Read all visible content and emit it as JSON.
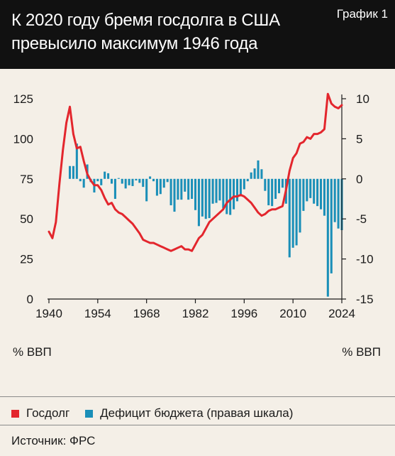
{
  "header": {
    "title": "К 2020 году бремя госдолга в США превысило максимум 1946 года",
    "tag": "График 1"
  },
  "units": {
    "left": "% ВВП",
    "right": "% ВВП"
  },
  "legend": [
    {
      "label": "Госдолг",
      "color": "#e3262d"
    },
    {
      "label": "Дефицит бюджета (правая шкала)",
      "color": "#1a8fb8"
    }
  ],
  "source": "Источник: ФРС",
  "colors": {
    "debt": "#e3262d",
    "deficit": "#1a8fb8",
    "header_bg": "#111111",
    "background": "#f4efe7"
  },
  "chart_data": {
    "type": "line+bar",
    "x_ticks": [
      1940,
      1954,
      1968,
      1982,
      1996,
      2010,
      2024
    ],
    "xlim": [
      1940,
      2024
    ],
    "left_axis": {
      "ticks": [
        0,
        25,
        50,
        75,
        100,
        125
      ],
      "ylim": [
        0,
        125
      ]
    },
    "right_axis": {
      "ticks": [
        -15,
        -10,
        -5,
        0,
        5,
        10
      ],
      "ylim": [
        -15,
        10
      ]
    },
    "series": [
      {
        "name": "Госдолг",
        "type": "line",
        "axis": "left",
        "x": [
          1940,
          1941,
          1942,
          1943,
          1944,
          1945,
          1946,
          1947,
          1948,
          1949,
          1950,
          1951,
          1952,
          1953,
          1954,
          1955,
          1956,
          1957,
          1958,
          1959,
          1960,
          1961,
          1962,
          1963,
          1964,
          1965,
          1966,
          1967,
          1968,
          1969,
          1970,
          1971,
          1972,
          1973,
          1974,
          1975,
          1976,
          1977,
          1978,
          1979,
          1980,
          1981,
          1982,
          1983,
          1984,
          1985,
          1986,
          1987,
          1988,
          1989,
          1990,
          1991,
          1992,
          1993,
          1994,
          1995,
          1996,
          1997,
          1998,
          1999,
          2000,
          2001,
          2002,
          2003,
          2004,
          2005,
          2006,
          2007,
          2008,
          2009,
          2010,
          2011,
          2012,
          2013,
          2014,
          2015,
          2016,
          2017,
          2018,
          2019,
          2020,
          2021,
          2022,
          2023,
          2024
        ],
        "values": [
          42,
          38,
          48,
          72,
          93,
          110,
          120,
          103,
          94,
          95,
          86,
          78,
          74,
          71,
          71,
          68,
          63,
          59,
          60,
          56,
          54,
          53,
          51,
          49,
          47,
          44,
          41,
          37,
          36,
          35,
          35,
          34,
          33,
          32,
          31,
          30,
          31,
          32,
          33,
          31,
          31,
          30,
          34,
          38,
          40,
          44,
          48,
          50,
          52,
          54,
          56,
          60,
          62,
          64,
          64,
          65,
          64,
          62,
          60,
          57,
          54,
          52,
          53,
          55,
          56,
          56,
          57,
          58,
          68,
          80,
          88,
          91,
          97,
          98,
          101,
          100,
          103,
          103,
          104,
          106,
          128,
          122,
          120,
          119,
          121
        ]
      },
      {
        "name": "Дефицит бюджета",
        "type": "bar",
        "axis": "right",
        "x": [
          1946,
          1947,
          1948,
          1949,
          1950,
          1951,
          1952,
          1953,
          1954,
          1955,
          1956,
          1957,
          1958,
          1959,
          1960,
          1961,
          1962,
          1963,
          1964,
          1965,
          1966,
          1967,
          1968,
          1969,
          1970,
          1971,
          1972,
          1973,
          1974,
          1975,
          1976,
          1977,
          1978,
          1979,
          1980,
          1981,
          1982,
          1983,
          1984,
          1985,
          1986,
          1987,
          1988,
          1989,
          1990,
          1991,
          1992,
          1993,
          1994,
          1995,
          1996,
          1997,
          1998,
          1999,
          2000,
          2001,
          2002,
          2003,
          2004,
          2005,
          2006,
          2007,
          2008,
          2009,
          2010,
          2011,
          2012,
          2013,
          2014,
          2015,
          2016,
          2017,
          2018,
          2019,
          2020,
          2021,
          2022,
          2023,
          2024
        ],
        "values": [
          1.6,
          1.6,
          4.4,
          -0.3,
          -1.1,
          1.8,
          -0.4,
          -1.7,
          -0.3,
          -0.8,
          0.9,
          0.7,
          -0.6,
          -2.5,
          0.1,
          -0.6,
          -1.2,
          -0.8,
          -0.9,
          -0.2,
          -0.5,
          -1.0,
          -2.8,
          0.3,
          -0.3,
          -2.1,
          -1.9,
          -1.1,
          -0.4,
          -3.3,
          -4.1,
          -2.6,
          -2.6,
          -1.6,
          -2.6,
          -2.5,
          -3.9,
          -5.9,
          -4.7,
          -5.0,
          -4.9,
          -3.1,
          -3.0,
          -2.7,
          -3.7,
          -4.4,
          -4.5,
          -3.8,
          -2.8,
          -2.1,
          -1.3,
          -0.3,
          0.8,
          1.3,
          2.3,
          1.2,
          -1.5,
          -3.3,
          -3.4,
          -2.5,
          -1.8,
          -1.1,
          -3.1,
          -9.8,
          -8.6,
          -8.3,
          -6.7,
          -4.0,
          -2.8,
          -2.4,
          -3.1,
          -3.4,
          -3.8,
          -4.6,
          -14.7,
          -11.8,
          -5.4,
          -6.2,
          -6.4
        ]
      }
    ]
  }
}
